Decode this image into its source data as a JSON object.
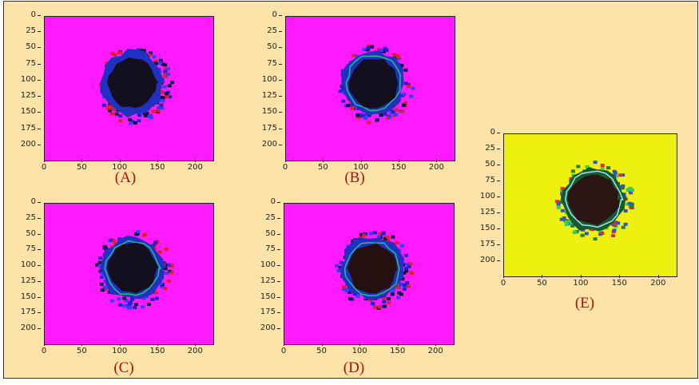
{
  "panels": [
    {
      "label": "(A)",
      "background": "#ff1aff",
      "variant": "plain"
    },
    {
      "label": "(B)",
      "background": "#ff1aff",
      "variant": "ring"
    },
    {
      "label": "(C)",
      "background": "#ff1aff",
      "variant": "ring2"
    },
    {
      "label": "(D)",
      "background": "#ff1aff",
      "variant": "ring3"
    },
    {
      "label": "(E)",
      "background": "#eef010",
      "variant": "yellow"
    }
  ],
  "axis": {
    "yticks": [
      "0",
      "25",
      "50",
      "75",
      "100",
      "125",
      "150",
      "175",
      "200"
    ],
    "xticks": [
      "0",
      "50",
      "100",
      "150",
      "200"
    ]
  },
  "colors": {
    "frame_background": "#fde3a7",
    "caption": "#b01010",
    "lesion_core": "#140f1e"
  }
}
